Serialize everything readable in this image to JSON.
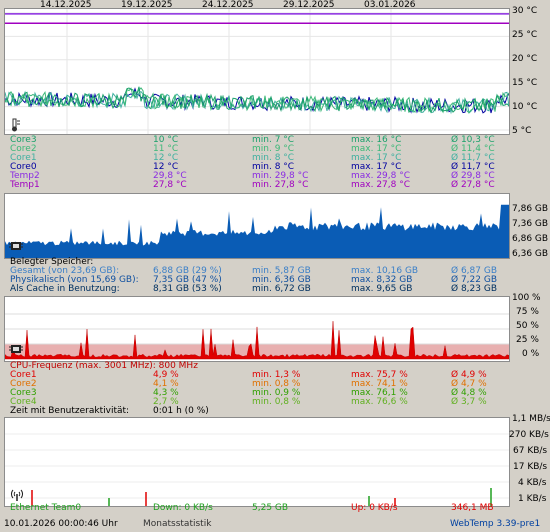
{
  "header": {
    "dates": [
      "14.12.2025",
      "19.12.2025",
      "24.12.2025",
      "29.12.2025",
      "03.01.2026"
    ]
  },
  "temp": {
    "axis": [
      "30 °C",
      "25 °C",
      "20 °C",
      "15 °C",
      "10 °C",
      "5 °C"
    ],
    "icon": "thermometer-icon",
    "rows": [
      {
        "name": "Core3",
        "cur": "10 °C",
        "min": "min. 7 °C",
        "max": "max. 16 °C",
        "avg": "Ø 10,3 °C",
        "color": "#1aa06a"
      },
      {
        "name": "Core2",
        "cur": "11 °C",
        "min": "min. 9 °C",
        "max": "max. 17 °C",
        "avg": "Ø 11,4 °C",
        "color": "#3cb878"
      },
      {
        "name": "Core1",
        "cur": "12 °C",
        "min": "min. 8 °C",
        "max": "max. 17 °C",
        "avg": "Ø 11,7 °C",
        "color": "#40b0a0"
      },
      {
        "name": "Core0",
        "cur": "12 °C",
        "min": "min. 8 °C",
        "max": "max. 17 °C",
        "avg": "Ø 11,7 °C",
        "color": "#0000a0"
      },
      {
        "name": "Temp2",
        "cur": "29,8 °C",
        "min": "min. 29,8 °C",
        "max": "max. 29,8 °C",
        "avg": "Ø 29,8 °C",
        "color": "#8a2be2"
      },
      {
        "name": "Temp1",
        "cur": "27,8 °C",
        "min": "min. 27,8 °C",
        "max": "max. 27,8 °C",
        "avg": "Ø 27,8 °C",
        "color": "#a000c0"
      }
    ]
  },
  "mem": {
    "axis": [
      "7,86 GB",
      "7,36 GB",
      "6,86 GB",
      "6,36 GB"
    ],
    "icon": "memory-chip-icon",
    "title": "Belegter Speicher:",
    "rows": [
      {
        "name": "Gesamt (von 23,69 GB):",
        "cur": "6,88 GB (29 %)",
        "min": "min. 5,87 GB",
        "max": "max. 10,16 GB",
        "avg": "Ø 6,87 GB",
        "color": "#3a7fc8"
      },
      {
        "name": "Physikalisch (von 15,69 GB):",
        "cur": "7,35 GB (47 %)",
        "min": "min. 6,36 GB",
        "max": "max. 8,32 GB",
        "avg": "Ø 7,22 GB",
        "color": "#1050a0"
      },
      {
        "name": "Als Cache in Benutzung:",
        "cur": "8,31 GB (53 %)",
        "min": "min. 6,72 GB",
        "max": "max. 9,65 GB",
        "avg": "Ø 8,23 GB",
        "color": "#003060"
      }
    ]
  },
  "cpu": {
    "axis": [
      "100 %",
      "75 %",
      "50 %",
      "25 %",
      "0 %"
    ],
    "icon": "cpu-chip-icon",
    "freq": "CPU-Frequenz (max. 3001 MHz): 800 MHz",
    "rows": [
      {
        "name": "Core1",
        "cur": "4,9 %",
        "min": "min. 1,3 %",
        "max": "max. 75,7 %",
        "avg": "Ø 4,9 %",
        "color": "#e00000"
      },
      {
        "name": "Core2",
        "cur": "4,1 %",
        "min": "min. 0,8 %",
        "max": "max. 74,1 %",
        "avg": "Ø 4,7 %",
        "color": "#e07000"
      },
      {
        "name": "Core3",
        "cur": "4,3 %",
        "min": "min. 0,9 %",
        "max": "max. 76,1 %",
        "avg": "Ø 4,8 %",
        "color": "#30a000"
      },
      {
        "name": "Core4",
        "cur": "2,7 %",
        "min": "min. 0,8 %",
        "max": "max. 76,6 %",
        "avg": "Ø 3,7 %",
        "color": "#60b020"
      }
    ],
    "activity_label": "Zeit mit Benutzeraktivität:",
    "activity_value": "0:01 h (0 %)"
  },
  "net": {
    "axis": [
      "1,1 MB/s",
      "270 KB/s",
      "67 KB/s",
      "17 KB/s",
      "4 KB/s",
      "1 KB/s"
    ],
    "icon": "antenna-icon",
    "name": "Ethernet Team0",
    "down": "Down: 0 KB/s",
    "down_total": "5,25 GB",
    "up": "Up: 0 KB/s",
    "up_total": "346,1 MB"
  },
  "footer": {
    "timestamp": "10.01.2026 00:00:46 Uhr",
    "mode": "Monatsstatistik",
    "version": "WebTemp 3.39-pre1"
  },
  "colors": {
    "background": "#d4d0c8",
    "memory_fill": "#0a5cb5",
    "cpu_band": "#e8b0b0",
    "cpu_line": "#e00000",
    "net_down": "#20a020",
    "net_up": "#e00000",
    "temp_lines": "#700070"
  }
}
